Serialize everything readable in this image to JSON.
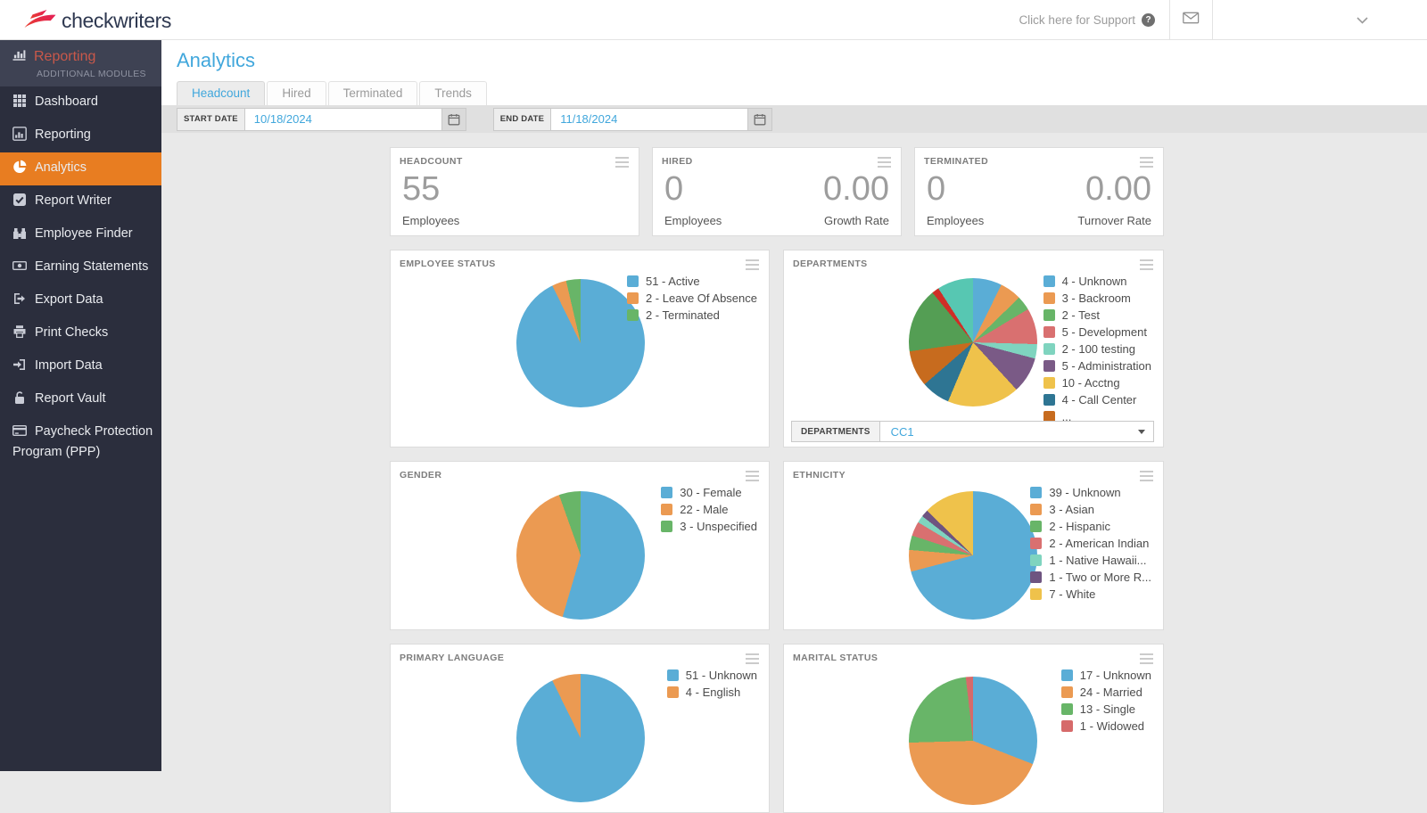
{
  "header": {
    "logo_text": "checkwriters",
    "support_text": "Click here for Support",
    "icons": [
      "checkwriters-logo-icon",
      "question-circle-icon",
      "envelope-icon",
      "chevron-down-icon"
    ]
  },
  "sidebar": {
    "module": {
      "title": "Reporting",
      "subtitle": "ADDITIONAL MODULES"
    },
    "items": [
      {
        "label": "Dashboard",
        "icon": "grid-icon",
        "active": false
      },
      {
        "label": "Reporting",
        "icon": "bar-chart-icon",
        "active": false
      },
      {
        "label": "Analytics",
        "icon": "pie-chart-icon",
        "active": true
      },
      {
        "label": "Report Writer",
        "icon": "check-square-icon",
        "active": false
      },
      {
        "label": "Employee Finder",
        "icon": "binoculars-icon",
        "active": false
      },
      {
        "label": "Earning Statements",
        "icon": "money-bill-icon",
        "active": false
      },
      {
        "label": "Export Data",
        "icon": "export-icon",
        "active": false
      },
      {
        "label": "Print Checks",
        "icon": "printer-icon",
        "active": false
      },
      {
        "label": "Import Data",
        "icon": "import-icon",
        "active": false
      },
      {
        "label": "Report Vault",
        "icon": "lock-icon",
        "active": false
      },
      {
        "label": "Paycheck Protection Program (PPP)",
        "icon": "credit-card-icon",
        "active": false
      }
    ]
  },
  "page": {
    "title": "Analytics",
    "tabs": [
      {
        "label": "Headcount",
        "active": true
      },
      {
        "label": "Hired",
        "active": false
      },
      {
        "label": "Terminated",
        "active": false
      },
      {
        "label": "Trends",
        "active": false
      }
    ],
    "filters": {
      "start_date": {
        "label": "START DATE",
        "value": "10/18/2024",
        "icon": "calendar-icon"
      },
      "end_date": {
        "label": "END DATE",
        "value": "11/18/2024",
        "icon": "calendar-icon"
      }
    }
  },
  "stats": [
    {
      "title": "HEADCOUNT",
      "value": "55",
      "caption": "Employees"
    },
    {
      "title": "HIRED",
      "value": "0",
      "caption": "Employees",
      "value2": "0.00",
      "caption2": "Growth Rate"
    },
    {
      "title": "TERMINATED",
      "value": "0",
      "caption": "Employees",
      "value2": "0.00",
      "caption2": "Turnover Rate"
    }
  ],
  "chart_data": [
    {
      "id": "employee_status",
      "type": "pie",
      "title": "EMPLOYEE STATUS",
      "legend_position": "right",
      "series": [
        {
          "label": "Active",
          "value": 51,
          "color": "#5aadd6"
        },
        {
          "label": "Leave Of Absence",
          "value": 2,
          "color": "#eb9a52"
        },
        {
          "label": "Terminated",
          "value": 2,
          "color": "#68b568"
        }
      ]
    },
    {
      "id": "departments",
      "type": "pie",
      "title": "DEPARTMENTS",
      "legend_position": "right",
      "series": [
        {
          "label": "Unknown",
          "value": 4,
          "color": "#5aadd6"
        },
        {
          "label": "Backroom",
          "value": 3,
          "color": "#eb9a52"
        },
        {
          "label": "Test",
          "value": 2,
          "color": "#68b568"
        },
        {
          "label": "Development",
          "value": 5,
          "color": "#d97070"
        },
        {
          "label": "100 testing",
          "value": 2,
          "color": "#7fd4bf"
        },
        {
          "label": "Administration",
          "value": 5,
          "color": "#7a5a86"
        },
        {
          "label": "Acctng",
          "value": 10,
          "color": "#efc24b"
        },
        {
          "label": "Call Center",
          "value": 4,
          "color": "#2e7593"
        }
      ],
      "other_slices": [
        {
          "value": 5,
          "color": "#c76b1e"
        },
        {
          "value": 9,
          "color": "#549e54"
        },
        {
          "value": 1,
          "color": "#cf2e27"
        },
        {
          "value": 5,
          "color": "#57c7b2"
        }
      ],
      "legend_more": {
        "label": "...",
        "color": "#c76b1e"
      },
      "filter": {
        "label": "DEPARTMENTS",
        "value": "CC1"
      }
    },
    {
      "id": "gender",
      "type": "pie",
      "title": "GENDER",
      "legend_position": "right",
      "series": [
        {
          "label": "Female",
          "value": 30,
          "color": "#5aadd6"
        },
        {
          "label": "Male",
          "value": 22,
          "color": "#eb9a52"
        },
        {
          "label": "Unspecified",
          "value": 3,
          "color": "#68b568"
        }
      ]
    },
    {
      "id": "ethnicity",
      "type": "pie",
      "title": "ETHNICITY",
      "legend_position": "right",
      "series": [
        {
          "label": "Unknown",
          "value": 39,
          "color": "#5aadd6"
        },
        {
          "label": "Asian",
          "value": 3,
          "color": "#eb9a52"
        },
        {
          "label": "Hispanic",
          "value": 2,
          "color": "#68b568"
        },
        {
          "label": "American Indian",
          "value": 2,
          "color": "#d97070"
        },
        {
          "label": "Native Hawaii...",
          "value": 1,
          "color": "#7fd4bf"
        },
        {
          "label": "Two or More R...",
          "value": 1,
          "color": "#6e5480"
        },
        {
          "label": "White",
          "value": 7,
          "color": "#efc24b"
        }
      ]
    },
    {
      "id": "primary_language",
      "type": "pie",
      "title": "PRIMARY LANGUAGE",
      "legend_position": "right",
      "series": [
        {
          "label": "Unknown",
          "value": 51,
          "color": "#5aadd6"
        },
        {
          "label": "English",
          "value": 4,
          "color": "#eb9a52"
        }
      ]
    },
    {
      "id": "marital_status",
      "type": "pie",
      "title": "MARITAL STATUS",
      "legend_position": "right",
      "series": [
        {
          "label": "Unknown",
          "value": 17,
          "color": "#5aadd6"
        },
        {
          "label": "Married",
          "value": 24,
          "color": "#eb9a52"
        },
        {
          "label": "Single",
          "value": 13,
          "color": "#68b568"
        },
        {
          "label": "Widowed",
          "value": 1,
          "color": "#d66a6a"
        }
      ]
    }
  ]
}
